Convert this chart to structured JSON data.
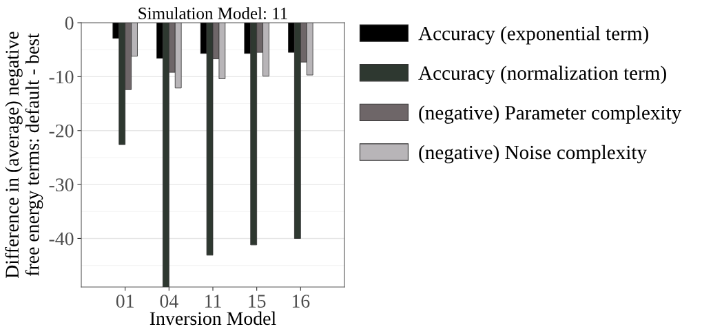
{
  "chart_data": {
    "type": "bar",
    "title": "Simulation Model: 11",
    "xlabel": "Inversion Model",
    "ylabel": "Difference in (average) negative\nfree energy terms: default - best",
    "categories": [
      "01",
      "04",
      "11",
      "15",
      "16"
    ],
    "series": [
      {
        "name": "Accuracy (exponential term)",
        "color": "#000000",
        "values": [
          -2.9,
          -6.6,
          -5.7,
          -5.7,
          -5.5
        ]
      },
      {
        "name": "Accuracy (normalization term)",
        "color": "#2e3830",
        "values": [
          -22.6,
          -49,
          -43.1,
          -41.2,
          -40.0
        ]
      },
      {
        "name": "(negative) Parameter complexity",
        "color": "#6e6668",
        "values": [
          -12.4,
          -9.2,
          -6.7,
          -5.5,
          -7.3
        ]
      },
      {
        "name": "(negative) Noise complexity",
        "color": "#b8b5b8",
        "values": [
          -6.2,
          -12.1,
          -10.4,
          -9.9,
          -9.7
        ]
      }
    ],
    "ylim": [
      -49,
      0
    ],
    "yticks": [
      -40,
      -30,
      -20,
      -10,
      0
    ],
    "grid": "y",
    "legend": "right"
  }
}
